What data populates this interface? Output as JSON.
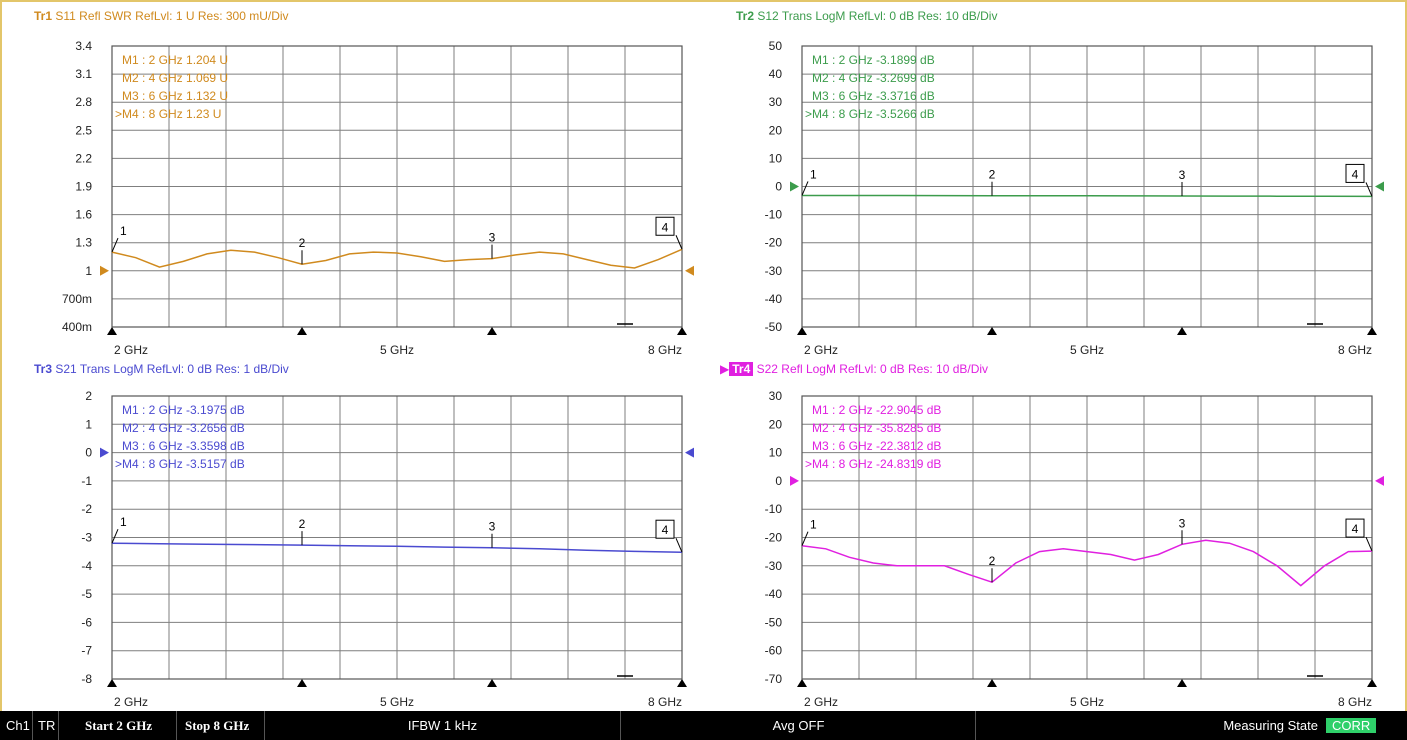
{
  "colors": {
    "tr1": "#d08a1e",
    "tr2": "#3c9c4c",
    "tr3": "#4a4ad0",
    "tr4": "#e020e0",
    "corr": "#2fd06a",
    "frame": "#e3c66a"
  },
  "traces": [
    {
      "id": "tr1",
      "title": {
        "tr": "Tr1",
        "text": "S11 Refl SWR RefLvl: 1  U Res: 300 mU/Div"
      },
      "y_labels": [
        "3.4",
        "3.1",
        "2.8",
        "2.5",
        "2.2",
        "1.9",
        "1.6",
        "1.3",
        "1",
        "700m",
        "400m"
      ],
      "ref_label": "1",
      "x_labels": [
        "2 GHz",
        "5 GHz",
        "8 GHz"
      ],
      "markers": [
        {
          "num": "1",
          "text": "M1  :   2 GHz  1.204  U"
        },
        {
          "num": "2",
          "text": "M2  :   4 GHz  1.069  U"
        },
        {
          "num": "3",
          "text": "M3  :   6 GHz  1.132  U"
        },
        {
          "num": "4",
          "text": ">M4  :   8 GHz  1.23  U"
        }
      ],
      "chart_data": {
        "type": "line",
        "xlim": [
          2,
          8
        ],
        "ylim": [
          0.4,
          3.4
        ],
        "reference": 1,
        "x": [
          2,
          2.25,
          2.5,
          2.75,
          3,
          3.25,
          3.5,
          3.75,
          4,
          4.25,
          4.5,
          4.75,
          5,
          5.25,
          5.5,
          5.75,
          6,
          6.25,
          6.5,
          6.75,
          7,
          7.25,
          7.5,
          7.75,
          8
        ],
        "y": [
          1.2,
          1.14,
          1.04,
          1.1,
          1.18,
          1.22,
          1.2,
          1.14,
          1.07,
          1.11,
          1.18,
          1.2,
          1.19,
          1.15,
          1.1,
          1.12,
          1.13,
          1.17,
          1.2,
          1.18,
          1.12,
          1.06,
          1.03,
          1.12,
          1.23
        ],
        "marker_x": [
          2,
          4,
          6,
          8
        ]
      }
    },
    {
      "id": "tr2",
      "title": {
        "tr": "Tr2",
        "text": "S12 Trans LogM RefLvl: 0  dB Res: 10  dB/Div"
      },
      "y_labels": [
        "50",
        "40",
        "30",
        "20",
        "10",
        "0",
        "-10",
        "-20",
        "-30",
        "-40",
        "-50"
      ],
      "ref_label": "0",
      "x_labels": [
        "2 GHz",
        "5 GHz",
        "8 GHz"
      ],
      "markers": [
        {
          "num": "1",
          "text": "M1  :   2 GHz  -3.1899  dB"
        },
        {
          "num": "2",
          "text": "M2  :   4 GHz  -3.2699  dB"
        },
        {
          "num": "3",
          "text": "M3  :   6 GHz  -3.3716  dB"
        },
        {
          "num": "4",
          "text": ">M4  :   8 GHz  -3.5266  dB"
        }
      ],
      "chart_data": {
        "type": "line",
        "xlim": [
          2,
          8
        ],
        "ylim": [
          -50,
          50
        ],
        "reference": 0,
        "x": [
          2,
          2.5,
          3,
          3.5,
          4,
          4.5,
          5,
          5.5,
          6,
          6.5,
          7,
          7.5,
          8
        ],
        "y": [
          -3.19,
          -3.2,
          -3.22,
          -3.25,
          -3.27,
          -3.3,
          -3.32,
          -3.35,
          -3.37,
          -3.4,
          -3.45,
          -3.5,
          -3.53
        ],
        "marker_x": [
          2,
          4,
          6,
          8
        ]
      }
    },
    {
      "id": "tr3",
      "title": {
        "tr": "Tr3",
        "text": "S21 Trans LogM RefLvl: 0  dB Res: 1  dB/Div"
      },
      "y_labels": [
        "2",
        "1",
        "0",
        "-1",
        "-2",
        "-3",
        "-4",
        "-5",
        "-6",
        "-7",
        "-8"
      ],
      "ref_label": "0",
      "x_labels": [
        "2 GHz",
        "5 GHz",
        "8 GHz"
      ],
      "markers": [
        {
          "num": "1",
          "text": "M1  :   2 GHz  -3.1975  dB"
        },
        {
          "num": "2",
          "text": "M2  :   4 GHz  -3.2656  dB"
        },
        {
          "num": "3",
          "text": "M3  :   6 GHz  -3.3598  dB"
        },
        {
          "num": "4",
          "text": ">M4  :   8 GHz  -3.5157  dB"
        }
      ],
      "chart_data": {
        "type": "line",
        "xlim": [
          2,
          8
        ],
        "ylim": [
          -8,
          2
        ],
        "reference": 0,
        "x": [
          2,
          2.5,
          3,
          3.5,
          4,
          4.5,
          5,
          5.5,
          6,
          6.5,
          7,
          7.5,
          8
        ],
        "y": [
          -3.2,
          -3.22,
          -3.24,
          -3.25,
          -3.27,
          -3.29,
          -3.31,
          -3.34,
          -3.36,
          -3.4,
          -3.45,
          -3.49,
          -3.52
        ],
        "marker_x": [
          2,
          4,
          6,
          8
        ]
      }
    },
    {
      "id": "tr4",
      "title": {
        "tr": "Tr4",
        "text": "S22 Refl LogM RefLvl: 0  dB Res: 10  dB/Div"
      },
      "y_labels": [
        "30",
        "20",
        "10",
        "0",
        "-10",
        "-20",
        "-30",
        "-40",
        "-50",
        "-60",
        "-70"
      ],
      "ref_label": "0",
      "x_labels": [
        "2 GHz",
        "5 GHz",
        "8 GHz"
      ],
      "markers": [
        {
          "num": "1",
          "text": "M1  :   2 GHz  -22.9045  dB"
        },
        {
          "num": "2",
          "text": "M2  :   4 GHz  -35.8285  dB"
        },
        {
          "num": "3",
          "text": "M3  :   6 GHz  -22.3812  dB"
        },
        {
          "num": "4",
          "text": ">M4  :   8 GHz  -24.8319  dB"
        }
      ],
      "chart_data": {
        "type": "line",
        "xlim": [
          2,
          8
        ],
        "ylim": [
          -70,
          30
        ],
        "reference": 0,
        "x": [
          2,
          2.25,
          2.5,
          2.75,
          3,
          3.25,
          3.5,
          3.75,
          4,
          4.25,
          4.5,
          4.75,
          5,
          5.25,
          5.5,
          5.75,
          6,
          6.25,
          6.5,
          6.75,
          7,
          7.25,
          7.5,
          7.75,
          8
        ],
        "y": [
          -22.9,
          -24,
          -27,
          -29,
          -30,
          -30,
          -30,
          -33,
          -35.8,
          -29,
          -25,
          -24,
          -25,
          -26,
          -28,
          -26,
          -22.4,
          -21,
          -22,
          -25,
          -30,
          -37,
          -30,
          -25,
          -24.8
        ],
        "marker_x": [
          2,
          4,
          6,
          8
        ]
      }
    }
  ],
  "status_bar": {
    "channel": "Ch1",
    "tr": "TR",
    "start": "Start 2 GHz",
    "stop": "Stop 8 GHz",
    "ifbw": "IFBW 1 kHz",
    "avg": "Avg OFF",
    "state": "Measuring State",
    "corr": "CORR"
  }
}
